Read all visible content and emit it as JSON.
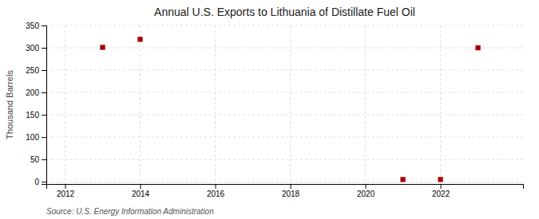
{
  "chart_data": {
    "type": "scatter",
    "title": "Annual U.S. Exports to Lithuania of Distillate Fuel Oil",
    "ylabel": "Thousand Barrels",
    "source": "Source: U.S. Energy Information Administration",
    "x": [
      2013,
      2014,
      2021,
      2022,
      2023
    ],
    "values": [
      301,
      319,
      5,
      5,
      300
    ],
    "color": "#aa0000",
    "marker": "square",
    "xlim": [
      2011.5,
      2024.2
    ],
    "xticks": [
      2012,
      2014,
      2016,
      2018,
      2020,
      2022
    ],
    "ylim": [
      -5,
      350
    ],
    "yticks": [
      0,
      50,
      100,
      150,
      200,
      250,
      300,
      350
    ],
    "grid": true
  }
}
